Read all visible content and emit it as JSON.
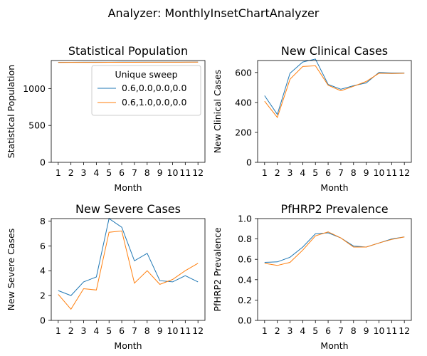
{
  "suptitle": "Analyzer: MonthlyInsetChartAnalyzer",
  "legend": {
    "title": "Unique sweep",
    "placement": "upper-right of first panel",
    "entries": [
      "0.6,0.0,0.0,0.0",
      "0.6,1.0,0.0,0.0"
    ]
  },
  "colors": {
    "series_a": "#1f77b4",
    "series_b": "#ff7f0e"
  },
  "chart_data": [
    {
      "type": "line",
      "title": "Statistical Population",
      "xlabel": "Month",
      "ylabel": "Statistical Population",
      "x": [
        1,
        2,
        3,
        4,
        5,
        6,
        7,
        8,
        9,
        10,
        11,
        12
      ],
      "xticks": [
        "1",
        "2",
        "3",
        "4",
        "5",
        "6",
        "7",
        "8",
        "9",
        "10",
        "11",
        "12"
      ],
      "ylim": [
        0,
        1380
      ],
      "yticks": [
        0,
        500,
        1000
      ],
      "series": [
        {
          "name": "0.6,0.0,0.0,0.0",
          "values": [
            1356,
            1356,
            1357,
            1357,
            1357,
            1358,
            1358,
            1358,
            1359,
            1359,
            1359,
            1360
          ]
        },
        {
          "name": "0.6,1.0,0.0,0.0",
          "values": [
            1354,
            1355,
            1355,
            1355,
            1356,
            1356,
            1356,
            1357,
            1357,
            1357,
            1358,
            1358
          ]
        }
      ]
    },
    {
      "type": "line",
      "title": "New Clinical Cases",
      "xlabel": "Month",
      "ylabel": "New Clinical Cases",
      "x": [
        1,
        2,
        3,
        4,
        5,
        6,
        7,
        8,
        9,
        10,
        11,
        12
      ],
      "xticks": [
        "1",
        "2",
        "3",
        "4",
        "5",
        "6",
        "7",
        "8",
        "9",
        "10",
        "11",
        "12"
      ],
      "ylim": [
        0,
        680
      ],
      "yticks": [
        0,
        200,
        400,
        600
      ],
      "series": [
        {
          "name": "0.6,0.0,0.0,0.0",
          "values": [
            445,
            320,
            595,
            670,
            690,
            520,
            488,
            512,
            530,
            600,
            597,
            597
          ]
        },
        {
          "name": "0.6,1.0,0.0,0.0",
          "values": [
            408,
            300,
            555,
            640,
            645,
            515,
            478,
            508,
            540,
            595,
            593,
            595
          ]
        }
      ]
    },
    {
      "type": "line",
      "title": "New Severe Cases",
      "xlabel": "Month",
      "ylabel": "New Severe Cases",
      "x": [
        1,
        2,
        3,
        4,
        5,
        6,
        7,
        8,
        9,
        10,
        11,
        12
      ],
      "xticks": [
        "1",
        "2",
        "3",
        "4",
        "5",
        "6",
        "7",
        "8",
        "9",
        "10",
        "11",
        "12"
      ],
      "ylim": [
        0,
        8.2
      ],
      "yticks": [
        0,
        2,
        4,
        6,
        8
      ],
      "series": [
        {
          "name": "0.6,0.0,0.0,0.0",
          "values": [
            2.4,
            2.0,
            3.1,
            3.5,
            8.2,
            7.5,
            4.8,
            5.4,
            3.2,
            3.1,
            3.6,
            3.1
          ]
        },
        {
          "name": "0.6,1.0,0.0,0.0",
          "values": [
            2.1,
            0.9,
            2.55,
            2.45,
            7.1,
            7.2,
            3.0,
            4.0,
            2.9,
            3.3,
            4.0,
            4.6
          ]
        }
      ]
    },
    {
      "type": "line",
      "title": "PfHRP2 Prevalence",
      "xlabel": "Month",
      "ylabel": "PfHRP2 Prevalence",
      "x": [
        1,
        2,
        3,
        4,
        5,
        6,
        7,
        8,
        9,
        10,
        11,
        12
      ],
      "xticks": [
        "1",
        "2",
        "3",
        "4",
        "5",
        "6",
        "7",
        "8",
        "9",
        "10",
        "11",
        "12"
      ],
      "ylim": [
        0,
        1.0
      ],
      "yticks": [
        "0.0",
        "0.2",
        "0.4",
        "0.6",
        "0.8",
        "1.0"
      ],
      "series": [
        {
          "name": "0.6,0.0,0.0,0.0",
          "values": [
            0.57,
            0.575,
            0.62,
            0.72,
            0.85,
            0.86,
            0.81,
            0.73,
            0.72,
            0.76,
            0.8,
            0.82
          ]
        },
        {
          "name": "0.6,1.0,0.0,0.0",
          "values": [
            0.56,
            0.54,
            0.57,
            0.69,
            0.83,
            0.87,
            0.81,
            0.72,
            0.72,
            0.76,
            0.795,
            0.82
          ]
        }
      ]
    }
  ]
}
